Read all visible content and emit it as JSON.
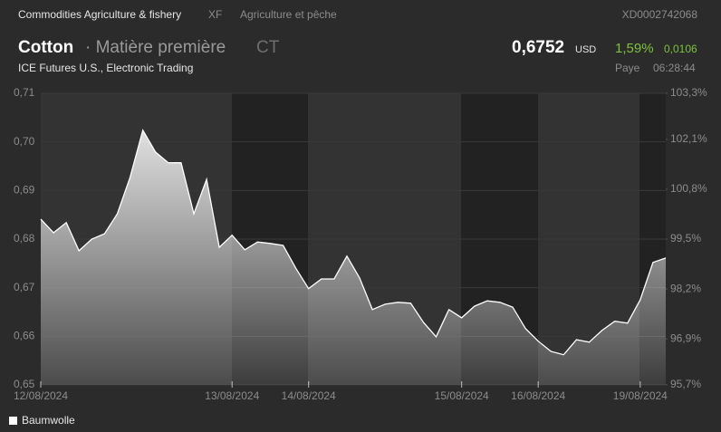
{
  "header": {
    "breadcrumb": "Commodities Agriculture & fishery",
    "code": "XF",
    "sector": "Agriculture et pêche",
    "isin": "XD0002742068",
    "name": "Cotton",
    "kind": "· Matière première",
    "symbol": "CT",
    "price": "0,6752",
    "currency": "USD",
    "change_pct": "1,59%",
    "change": "0,0106",
    "exchange": "ICE Futures U.S., Electronic Trading",
    "status": "Paye",
    "time": "06:28:44"
  },
  "chart_data": {
    "type": "area",
    "categories": [
      "12/08/2024",
      null,
      null,
      null,
      null,
      null,
      null,
      null,
      null,
      null,
      null,
      null,
      null,
      null,
      null,
      "13/08/2024",
      null,
      null,
      null,
      null,
      null,
      "14/08/2024",
      null,
      null,
      null,
      null,
      null,
      null,
      null,
      null,
      null,
      null,
      null,
      "15/08/2024",
      null,
      null,
      null,
      null,
      null,
      "16/08/2024",
      null,
      null,
      null,
      null,
      null,
      null,
      null,
      "19/08/2024",
      null,
      null
    ],
    "series": [
      {
        "name": "Baumwolle",
        "color": "#ffffff",
        "values": [
          0.6841,
          0.6813,
          0.6834,
          0.6776,
          0.68,
          0.6811,
          0.6852,
          0.6927,
          0.7024,
          0.6979,
          0.6957,
          0.6957,
          0.6852,
          0.6923,
          0.6783,
          0.6808,
          0.6778,
          0.6794,
          0.6791,
          0.6787,
          0.674,
          0.6698,
          0.6718,
          0.6718,
          0.6765,
          0.672,
          0.6655,
          0.6666,
          0.667,
          0.6668,
          0.6629,
          0.6599,
          0.6655,
          0.6638,
          0.6662,
          0.6673,
          0.667,
          0.666,
          0.6616,
          0.659,
          0.6569,
          0.6562,
          0.6593,
          0.6588,
          0.6612,
          0.6631,
          0.6627,
          0.6675,
          0.6752,
          0.6761
        ]
      }
    ],
    "ylim": [
      0.65,
      0.71
    ],
    "yticks": [
      {
        "value": 0.71,
        "label": "0,71"
      },
      {
        "value": 0.7,
        "label": "0,70"
      },
      {
        "value": 0.69,
        "label": "0,69"
      },
      {
        "value": 0.68,
        "label": "0,68"
      },
      {
        "value": 0.67,
        "label": "0,67"
      },
      {
        "value": 0.66,
        "label": "0,66"
      },
      {
        "value": 0.65,
        "label": "0,65"
      }
    ],
    "y2lim": [
      95.7,
      103.3
    ],
    "y2ticks": [
      {
        "value": 103.3,
        "label": "103,3%"
      },
      {
        "value": 102.1,
        "label": "102,1%"
      },
      {
        "value": 100.8,
        "label": "100,8%"
      },
      {
        "value": 99.5,
        "label": "99,5%"
      },
      {
        "value": 98.2,
        "label": "98,2%"
      },
      {
        "value": 96.9,
        "label": "96,9%"
      },
      {
        "value": 95.7,
        "label": "95,7%"
      }
    ],
    "grid": true
  }
}
